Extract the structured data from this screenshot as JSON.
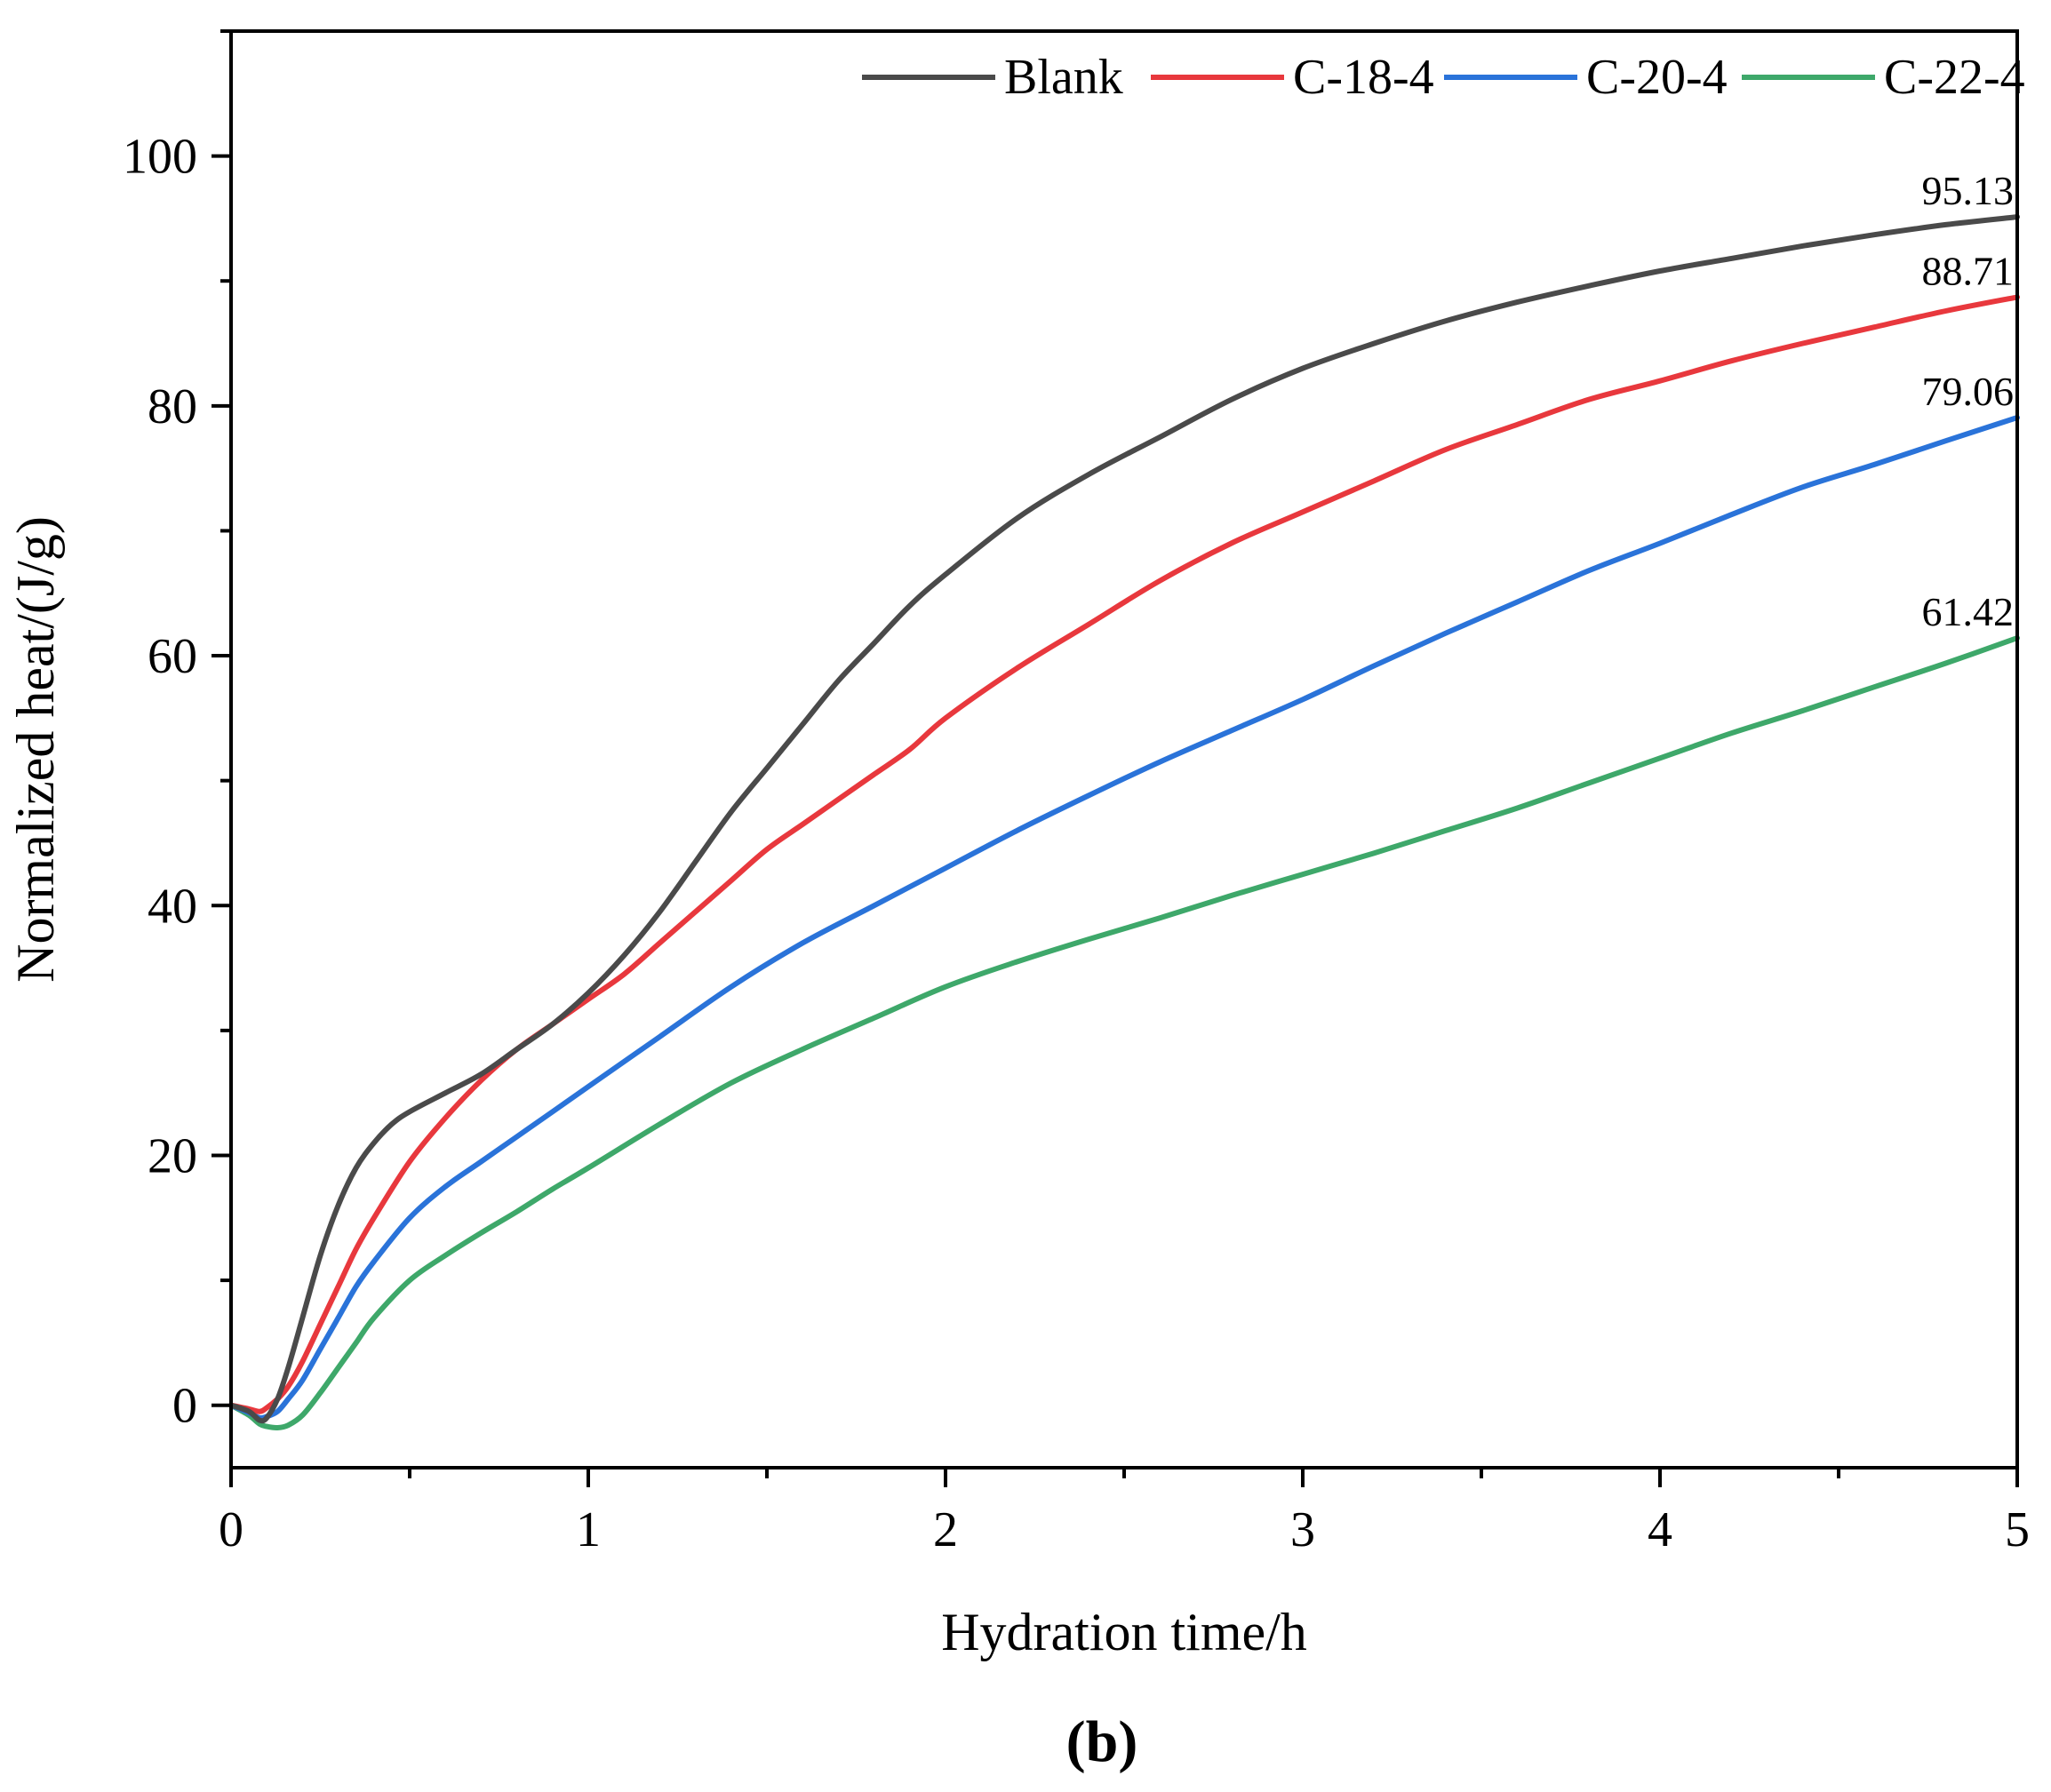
{
  "chart_data": {
    "type": "line",
    "xlabel": "Hydration time/h",
    "ylabel": "Normalized heat/(J/g)",
    "panel_label": "(b)",
    "xlim": [
      0,
      5
    ],
    "ylim": [
      -5,
      110
    ],
    "x_ticks": [
      0,
      1,
      2,
      3,
      4,
      5
    ],
    "y_ticks": [
      0,
      20,
      40,
      60,
      80,
      100
    ],
    "legend_position": "top-right",
    "series": [
      {
        "name": "Blank",
        "color": "#4a4a4a",
        "end_label": "95.13",
        "x": [
          0,
          0.05,
          0.08,
          0.1,
          0.13,
          0.16,
          0.2,
          0.25,
          0.3,
          0.35,
          0.4,
          0.45,
          0.5,
          0.6,
          0.7,
          0.8,
          0.9,
          1.0,
          1.1,
          1.2,
          1.3,
          1.4,
          1.5,
          1.6,
          1.7,
          1.8,
          1.9,
          2.0,
          2.2,
          2.4,
          2.6,
          2.8,
          3.0,
          3.2,
          3.4,
          3.6,
          3.8,
          4.0,
          4.2,
          4.4,
          4.6,
          4.8,
          5.0
        ],
        "y": [
          0,
          -0.5,
          -1.2,
          -1.0,
          0.5,
          3,
          7,
          12,
          16,
          19,
          21,
          22.5,
          23.5,
          25,
          26.5,
          28.5,
          30.5,
          33,
          36,
          39.5,
          43.5,
          47.5,
          51,
          54.5,
          58,
          61,
          64,
          66.5,
          71,
          74.5,
          77.5,
          80.5,
          83,
          85,
          86.8,
          88.3,
          89.6,
          90.8,
          91.8,
          92.8,
          93.7,
          94.5,
          95.13
        ]
      },
      {
        "name": "C-18-4",
        "color": "#e8383d",
        "end_label": "88.71",
        "x": [
          0,
          0.05,
          0.08,
          0.1,
          0.13,
          0.16,
          0.2,
          0.25,
          0.3,
          0.35,
          0.4,
          0.5,
          0.6,
          0.7,
          0.8,
          0.9,
          1.0,
          1.1,
          1.2,
          1.3,
          1.4,
          1.5,
          1.6,
          1.7,
          1.8,
          1.9,
          2.0,
          2.2,
          2.4,
          2.6,
          2.8,
          3.0,
          3.2,
          3.4,
          3.6,
          3.8,
          4.0,
          4.2,
          4.4,
          4.6,
          4.8,
          5.0
        ],
        "y": [
          0,
          -0.3,
          -0.5,
          -0.2,
          0.5,
          1.5,
          3.5,
          6.5,
          9.5,
          12.5,
          15,
          19.5,
          23,
          26,
          28.5,
          30.5,
          32.5,
          34.5,
          37,
          39.5,
          42,
          44.5,
          46.5,
          48.5,
          50.5,
          52.5,
          55,
          59,
          62.5,
          66,
          69,
          71.5,
          74,
          76.5,
          78.5,
          80.5,
          82,
          83.6,
          85,
          86.3,
          87.6,
          88.71
        ]
      },
      {
        "name": "C-20-4",
        "color": "#2a73d9",
        "end_label": "79.06",
        "x": [
          0,
          0.05,
          0.08,
          0.1,
          0.13,
          0.16,
          0.2,
          0.25,
          0.3,
          0.35,
          0.4,
          0.5,
          0.6,
          0.7,
          0.8,
          0.9,
          1.0,
          1.2,
          1.4,
          1.6,
          1.8,
          2.0,
          2.2,
          2.4,
          2.6,
          2.8,
          3.0,
          3.2,
          3.4,
          3.6,
          3.8,
          4.0,
          4.2,
          4.4,
          4.6,
          4.8,
          5.0
        ],
        "y": [
          0,
          -0.6,
          -1.0,
          -0.9,
          -0.5,
          0.5,
          2,
          4.5,
          7,
          9.5,
          11.5,
          15,
          17.5,
          19.5,
          21.5,
          23.5,
          25.5,
          29.5,
          33.5,
          37,
          40,
          43,
          46,
          48.8,
          51.5,
          54,
          56.5,
          59.2,
          61.8,
          64.3,
          66.8,
          69,
          71.3,
          73.5,
          75.3,
          77.2,
          79.06
        ]
      },
      {
        "name": "C-22-4",
        "color": "#3ea86a",
        "end_label": "61.42",
        "x": [
          0,
          0.05,
          0.08,
          0.1,
          0.13,
          0.16,
          0.2,
          0.25,
          0.3,
          0.35,
          0.4,
          0.5,
          0.6,
          0.7,
          0.8,
          0.9,
          1.0,
          1.2,
          1.4,
          1.6,
          1.8,
          2.0,
          2.2,
          2.4,
          2.6,
          2.8,
          3.0,
          3.2,
          3.4,
          3.6,
          3.8,
          4.0,
          4.2,
          4.4,
          4.6,
          4.8,
          5.0
        ],
        "y": [
          0,
          -0.8,
          -1.5,
          -1.7,
          -1.8,
          -1.6,
          -0.8,
          1,
          3,
          5,
          7,
          10,
          12,
          13.8,
          15.5,
          17.3,
          19,
          22.5,
          25.8,
          28.5,
          31,
          33.5,
          35.5,
          37.3,
          39,
          40.8,
          42.5,
          44.2,
          46,
          47.8,
          49.8,
          51.8,
          53.8,
          55.6,
          57.5,
          59.4,
          61.42
        ]
      }
    ]
  }
}
